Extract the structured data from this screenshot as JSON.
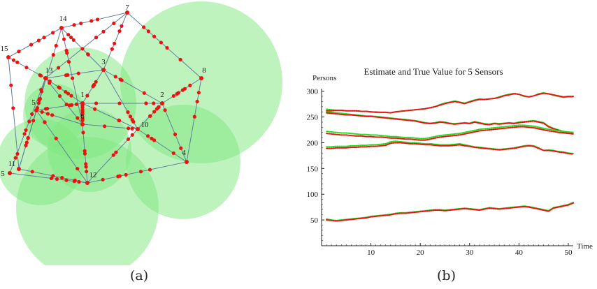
{
  "captions": {
    "a": "(a)",
    "b": "(b)"
  },
  "colors": {
    "coverage": "#7ee87e",
    "edge": "#5f7f99",
    "node": "#ee1111",
    "estimate": "#22dd22",
    "truth": "#ee1111",
    "axis": "#222222"
  },
  "sensor_network": {
    "nodes": [
      "1",
      "2",
      "3",
      "4",
      "5",
      "6",
      "7",
      "8",
      "10",
      "11",
      "12",
      "13",
      "14",
      "15",
      "5"
    ]
  },
  "chart_data": {
    "type": "line",
    "title": "Estimate and True Value for 5 Sensors",
    "ylabel": "Persons",
    "xlabel": "Time",
    "xlim": [
      0,
      51
    ],
    "ylim": [
      0,
      305
    ],
    "xticks": [
      10,
      20,
      30,
      40,
      50
    ],
    "yticks": [
      50,
      100,
      150,
      200,
      250,
      300
    ],
    "grid": false,
    "legend": "none",
    "series": [
      {
        "estimate": [
          265,
          264,
          263,
          263,
          262,
          262,
          262,
          261,
          261,
          260,
          260,
          259,
          259,
          258,
          260,
          261,
          262,
          263,
          264,
          265,
          266,
          268,
          270,
          274,
          277,
          279,
          281,
          279,
          277,
          280,
          283,
          285,
          284,
          285,
          286,
          289,
          292,
          294,
          296,
          294,
          290,
          289,
          291,
          295,
          297,
          295,
          292,
          290,
          288,
          289,
          289
        ],
        "true": [
          262,
          262,
          263,
          263,
          262,
          262,
          262,
          261,
          261,
          260,
          259,
          259,
          259,
          258,
          260,
          261,
          262,
          263,
          264,
          265,
          266,
          268,
          270,
          273,
          276,
          278,
          280,
          278,
          276,
          279,
          282,
          284,
          284,
          285,
          286,
          288,
          291,
          293,
          295,
          294,
          291,
          289,
          291,
          294,
          296,
          295,
          293,
          291,
          289,
          290,
          290
        ]
      },
      {
        "estimate": [
          260,
          259,
          258,
          257,
          256,
          255,
          254,
          253,
          252,
          252,
          251,
          250,
          249,
          248,
          247,
          246,
          245,
          244,
          243,
          241,
          239,
          238,
          239,
          241,
          240,
          238,
          237,
          238,
          239,
          238,
          241,
          239,
          237,
          236,
          238,
          237,
          238,
          239,
          238,
          240,
          241,
          242,
          243,
          241,
          239,
          232,
          228,
          225,
          222,
          220,
          219
        ],
        "true": [
          258,
          257,
          256,
          255,
          254,
          254,
          253,
          252,
          251,
          251,
          250,
          249,
          248,
          247,
          246,
          245,
          244,
          243,
          242,
          240,
          238,
          237,
          238,
          240,
          239,
          237,
          236,
          237,
          238,
          237,
          240,
          238,
          236,
          235,
          237,
          236,
          237,
          238,
          237,
          239,
          240,
          241,
          242,
          240,
          238,
          231,
          227,
          224,
          221,
          219,
          218
        ]
      },
      {
        "estimate": [
          222,
          221,
          220,
          219,
          219,
          218,
          217,
          216,
          216,
          215,
          215,
          214,
          213,
          212,
          212,
          211,
          210,
          210,
          209,
          208,
          208,
          210,
          212,
          214,
          215,
          216,
          217,
          218,
          220,
          222,
          224,
          226,
          227,
          228,
          229,
          230,
          231,
          232,
          233,
          234,
          234,
          233,
          232,
          230,
          228,
          226,
          225,
          223,
          222,
          221,
          220
        ],
        "true": [
          218,
          217,
          216,
          215,
          215,
          214,
          213,
          213,
          212,
          212,
          211,
          211,
          210,
          209,
          209,
          208,
          207,
          207,
          206,
          205,
          205,
          207,
          209,
          211,
          212,
          213,
          214,
          215,
          217,
          219,
          221,
          223,
          224,
          225,
          226,
          227,
          228,
          229,
          230,
          231,
          231,
          230,
          229,
          227,
          225,
          223,
          222,
          220,
          219,
          218,
          217
        ]
      },
      {
        "estimate": [
          192,
          192,
          193,
          193,
          193,
          194,
          194,
          195,
          195,
          196,
          196,
          197,
          198,
          202,
          203,
          202,
          201,
          200,
          200,
          199,
          198,
          198,
          197,
          196,
          196,
          196,
          197,
          198,
          196,
          194,
          192,
          191,
          190,
          189,
          188,
          187,
          188,
          189,
          190,
          192,
          194,
          195,
          194,
          190,
          185,
          186,
          185,
          183,
          182,
          180,
          179
        ],
        "true": [
          189,
          189,
          190,
          190,
          190,
          191,
          191,
          192,
          192,
          193,
          193,
          194,
          195,
          199,
          200,
          200,
          199,
          198,
          198,
          197,
          196,
          196,
          195,
          194,
          194,
          194,
          195,
          196,
          194,
          193,
          191,
          190,
          189,
          188,
          187,
          186,
          187,
          188,
          189,
          191,
          193,
          194,
          193,
          189,
          185,
          185,
          184,
          182,
          181,
          179,
          178
        ]
      },
      {
        "estimate": [
          52,
          50,
          49,
          50,
          51,
          52,
          53,
          54,
          55,
          57,
          58,
          59,
          60,
          61,
          63,
          64,
          64,
          65,
          66,
          67,
          68,
          69,
          70,
          70,
          69,
          70,
          71,
          72,
          73,
          72,
          71,
          70,
          72,
          74,
          73,
          72,
          73,
          74,
          75,
          76,
          77,
          76,
          74,
          72,
          70,
          68,
          74,
          76,
          78,
          80,
          84
        ],
        "true": [
          50,
          49,
          48,
          49,
          50,
          51,
          52,
          53,
          54,
          56,
          57,
          58,
          59,
          60,
          62,
          63,
          63,
          64,
          65,
          66,
          67,
          68,
          69,
          69,
          68,
          69,
          70,
          71,
          72,
          71,
          70,
          69,
          71,
          73,
          72,
          71,
          72,
          73,
          74,
          75,
          76,
          75,
          73,
          71,
          69,
          67,
          73,
          75,
          77,
          79,
          83
        ]
      }
    ]
  }
}
